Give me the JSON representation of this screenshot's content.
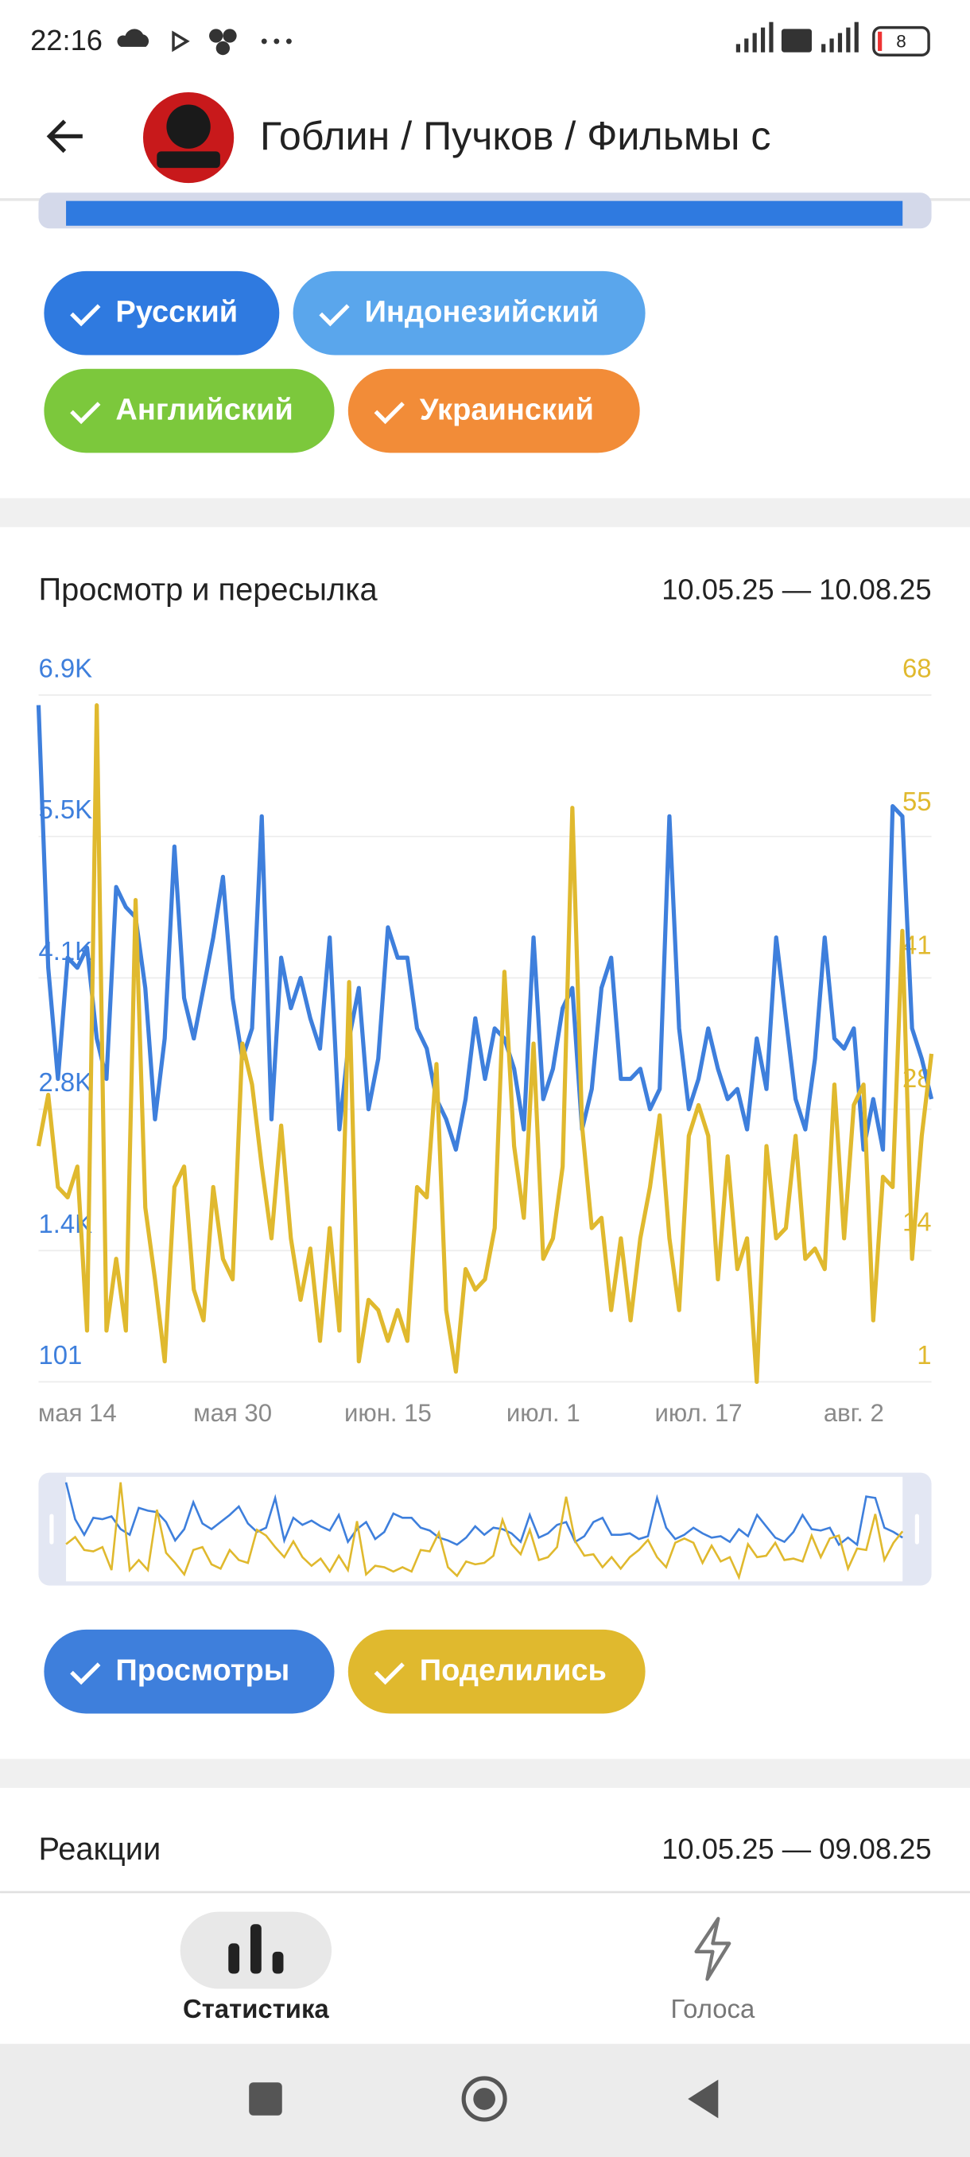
{
  "status": {
    "time": "22:16",
    "battery": "8"
  },
  "header": {
    "title": "Гоблин / Пучков / Фильмы с"
  },
  "languages": [
    "Русский",
    "Индонезийский",
    "Английский",
    "Украинский"
  ],
  "chart_data": {
    "type": "line",
    "title": "Просмотр и пересылка",
    "subtitle": "10.05.25 — 10.08.25",
    "categories": [
      null,
      null,
      null,
      null,
      "мая 14",
      null,
      null,
      null,
      null,
      null,
      null,
      null,
      null,
      null,
      null,
      null,
      null,
      null,
      null,
      null,
      "мая 30",
      null,
      null,
      null,
      null,
      null,
      null,
      null,
      null,
      null,
      null,
      null,
      null,
      null,
      null,
      null,
      "июн. 15",
      null,
      null,
      null,
      null,
      null,
      null,
      null,
      null,
      null,
      null,
      null,
      null,
      null,
      null,
      null,
      "июл. 1",
      null,
      null,
      null,
      null,
      null,
      null,
      null,
      null,
      null,
      null,
      null,
      null,
      null,
      null,
      null,
      "июл. 17",
      null,
      null,
      null,
      null,
      null,
      null,
      null,
      null,
      null,
      null,
      null,
      null,
      null,
      null,
      null,
      "авг. 2",
      null,
      null,
      null,
      null,
      null,
      null,
      null,
      null
    ],
    "series": [
      {
        "name": "Просмотры",
        "color": "#3e7fdc",
        "axis": "y",
        "values": [
          6800,
          4200,
          3100,
          4300,
          4200,
          4400,
          3500,
          3100,
          5000,
          4800,
          4700,
          4000,
          2700,
          3500,
          5400,
          3900,
          3500,
          4000,
          4500,
          5100,
          3900,
          3300,
          3600,
          5700,
          2700,
          4300,
          3800,
          4100,
          3700,
          3400,
          4500,
          2600,
          3500,
          4000,
          2800,
          3300,
          4600,
          4300,
          4300,
          3600,
          3400,
          2900,
          2700,
          2400,
          2900,
          3700,
          3100,
          3600,
          3500,
          3200,
          2600,
          4500,
          2900,
          3200,
          3800,
          4000,
          2600,
          3000,
          4000,
          4300,
          3100,
          3100,
          3200,
          2800,
          3000,
          5700,
          3600,
          2800,
          3100,
          3600,
          3200,
          2900,
          3000,
          2600,
          3500,
          3000,
          4500,
          3700,
          2900,
          2600,
          3300,
          4500,
          3500,
          3400,
          3600,
          2400,
          2900,
          2400,
          5800,
          5700,
          3600,
          3300,
          2900
        ]
      },
      {
        "name": "Поделились",
        "color": "#e0b92e",
        "axis": "y2",
        "values": [
          24,
          29,
          20,
          19,
          22,
          6,
          67,
          6,
          13,
          6,
          48,
          18,
          11,
          3,
          20,
          22,
          10,
          7,
          20,
          13,
          11,
          34,
          30,
          22,
          15,
          26,
          15,
          9,
          14,
          5,
          16,
          6,
          40,
          3,
          9,
          8,
          5,
          8,
          5,
          20,
          19,
          32,
          8,
          2,
          12,
          10,
          11,
          16,
          41,
          24,
          17,
          34,
          13,
          15,
          22,
          57,
          26,
          16,
          17,
          8,
          15,
          7,
          15,
          20,
          27,
          15,
          8,
          25,
          28,
          25,
          11,
          23,
          12,
          15,
          1,
          24,
          15,
          16,
          25,
          13,
          14,
          12,
          30,
          15,
          28,
          30,
          7,
          21,
          20,
          45,
          13,
          25,
          33
        ]
      }
    ],
    "ylim": [
      101,
      6900
    ],
    "yticks": [
      101,
      {
        "value": 1400,
        "label": "1.4K"
      },
      {
        "value": 2800,
        "label": "2.8K"
      },
      {
        "value": 4100,
        "label": "4.1K"
      },
      {
        "value": 5500,
        "label": "5.5K"
      },
      {
        "value": 6900,
        "label": "6.9K"
      }
    ],
    "y2lim": [
      1,
      68
    ],
    "y2ticks": [
      1,
      14,
      28,
      41,
      55,
      68
    ],
    "grid": true
  },
  "reactions": {
    "title": "Реакции",
    "subtitle": "10.05.25 — 09.08.25"
  },
  "nav": [
    "Статистика",
    "Голоса"
  ]
}
